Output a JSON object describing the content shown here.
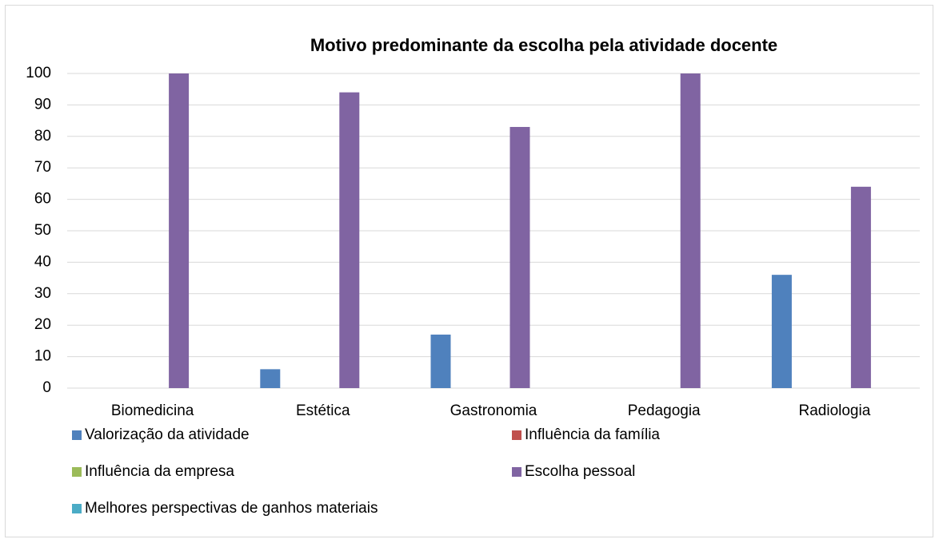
{
  "chart_data": {
    "type": "bar",
    "title": "Motivo predominante da escolha pela atividade docente",
    "categories": [
      "Biomedicina",
      "Estética",
      "Gastronomia",
      "Pedagogia",
      "Radiologia"
    ],
    "series": [
      {
        "name": "Valorização da atividade",
        "color": "#4f81bd",
        "values": [
          0,
          6,
          17,
          0,
          36
        ]
      },
      {
        "name": "Influência da família",
        "color": "#c0504d",
        "values": [
          0,
          0,
          0,
          0,
          0
        ]
      },
      {
        "name": "Influência da empresa",
        "color": "#9bbb59",
        "values": [
          0,
          0,
          0,
          0,
          0
        ]
      },
      {
        "name": "Escolha pessoal",
        "color": "#8064a2",
        "values": [
          100,
          94,
          83,
          100,
          64
        ]
      },
      {
        "name": "Melhores perspectivas de ganhos materiais",
        "color": "#4bacc6",
        "values": [
          0,
          0,
          0,
          0,
          0
        ]
      }
    ],
    "ylim": [
      0,
      100
    ],
    "yticks": [
      0,
      10,
      20,
      30,
      40,
      50,
      60,
      70,
      80,
      90,
      100
    ],
    "grid": true
  }
}
